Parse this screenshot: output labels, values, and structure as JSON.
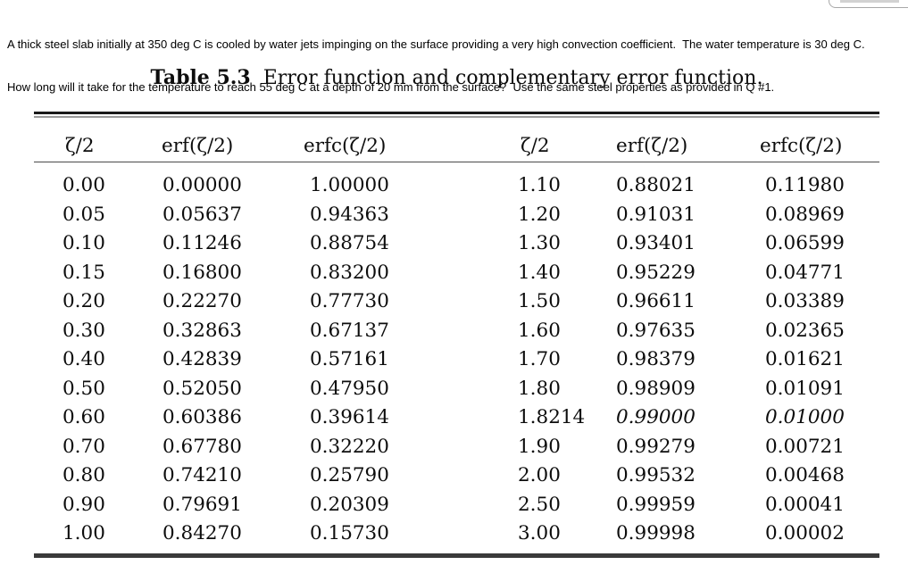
{
  "problem": {
    "line1": "A thick steel slab initially at 350 deg C is cooled by water jets impinging on the surface providing a very high convection coefficient.  The water temperature is 30 deg C.",
    "line2": "How long will it take for the temperature to reach 55 deg C at a depth of 20 mm from the surface?  Use the same steel properties as provided in Q #1."
  },
  "table": {
    "label": "Table 5.3",
    "caption": "Error function and complementary error function.",
    "headers": [
      "ζ/2",
      "erf(ζ/2)",
      "erfc(ζ/2)",
      "ζ/2",
      "erf(ζ/2)",
      "erfc(ζ/2)"
    ],
    "rows": [
      [
        "0.00",
        "0.00000",
        "1.00000",
        "1.10",
        "0.88021",
        "0.11980"
      ],
      [
        "0.05",
        "0.05637",
        "0.94363",
        "1.20",
        "0.91031",
        "0.08969"
      ],
      [
        "0.10",
        "0.11246",
        "0.88754",
        "1.30",
        "0.93401",
        "0.06599"
      ],
      [
        "0.15",
        "0.16800",
        "0.83200",
        "1.40",
        "0.95229",
        "0.04771"
      ],
      [
        "0.20",
        "0.22270",
        "0.77730",
        "1.50",
        "0.96611",
        "0.03389"
      ],
      [
        "0.30",
        "0.32863",
        "0.67137",
        "1.60",
        "0.97635",
        "0.02365"
      ],
      [
        "0.40",
        "0.42839",
        "0.57161",
        "1.70",
        "0.98379",
        "0.01621"
      ],
      [
        "0.50",
        "0.52050",
        "0.47950",
        "1.80",
        "0.98909",
        "0.01091"
      ],
      [
        "0.60",
        "0.60386",
        "0.39614",
        "1.8214",
        "0.99000",
        "0.01000"
      ],
      [
        "0.70",
        "0.67780",
        "0.32220",
        "1.90",
        "0.99279",
        "0.00721"
      ],
      [
        "0.80",
        "0.74210",
        "0.25790",
        "2.00",
        "0.99532",
        "0.00468"
      ],
      [
        "0.90",
        "0.79691",
        "0.20309",
        "2.50",
        "0.99959",
        "0.00041"
      ],
      [
        "1.00",
        "0.84270",
        "0.15730",
        "3.00",
        "0.99998",
        "0.00002"
      ]
    ],
    "italic_highlight": {
      "row": 8,
      "cols": [
        4,
        5
      ]
    }
  }
}
